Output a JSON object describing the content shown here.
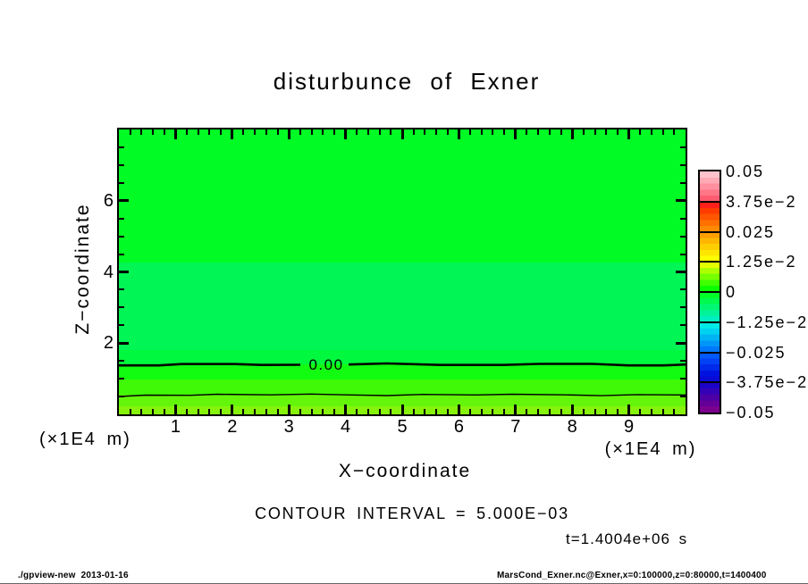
{
  "title": "disturbunce of Exner",
  "axes": {
    "x": {
      "label": "X−coordinate",
      "units": "(×1E4 m)",
      "ticks": [
        "1",
        "2",
        "3",
        "4",
        "5",
        "6",
        "7",
        "8",
        "9"
      ]
    },
    "y": {
      "label": "Z−coordinate",
      "units": "(×1E4 m)",
      "ticks": [
        "2",
        "4",
        "6"
      ]
    }
  },
  "annotations": {
    "contour_interval": "CONTOUR INTERVAL = 5.000E−03",
    "time": "t=1.4004e+06 s",
    "contour_label": "0.00"
  },
  "footer": {
    "left": "./gpview-new  2013-01-16",
    "right": "MarsCond_Exner.nc@Exner,x=0:100000,z=0:80000,t=1400400"
  },
  "colorbar": {
    "tick_labels": [
      "0.05",
      "3.75e−2",
      "0.025",
      "1.25e−2",
      "0",
      "−1.25e−2",
      "−0.025",
      "−3.75e−2",
      "−0.05"
    ],
    "segments": [
      {
        "colors": [
          "#FFC2CC",
          "#FFA9B5",
          "#FF8F9E",
          "#FF7687",
          "#FF5C70"
        ]
      },
      {
        "colors": [
          "#FF2019",
          "#FF3C00",
          "#FF5600",
          "#FF7000",
          "#FF8A00"
        ]
      },
      {
        "colors": [
          "#FF9E00",
          "#FFB600",
          "#FFCE00",
          "#FFE600",
          "#FFFD00"
        ]
      },
      {
        "colors": [
          "#E2FF00",
          "#ACFF00",
          "#76FF00",
          "#40FF00",
          "#0AFF00"
        ]
      },
      {
        "colors": [
          "#00FF28",
          "#00FB4E",
          "#00F774",
          "#00F39A",
          "#00EFC0"
        ]
      },
      {
        "colors": [
          "#00EBE6",
          "#00D2F0",
          "#00B4F4",
          "#0096F8",
          "#0078FC"
        ]
      },
      {
        "colors": [
          "#005AFE",
          "#0042F4",
          "#002AEA",
          "#0012E0",
          "#0A0AD6"
        ]
      },
      {
        "colors": [
          "#1C04C6",
          "#3402B6",
          "#4C00A6",
          "#640098",
          "#7C008E"
        ]
      }
    ]
  },
  "chart_data": {
    "type": "heatmap",
    "title": "disturbunce of Exner",
    "xlabel": "X-coordinate",
    "xunits": "(×1E4 m)",
    "ylabel": "Z-coordinate",
    "yunits": "(×1E4 m)",
    "xlim": [
      0,
      10
    ],
    "ylim": [
      0,
      8
    ],
    "x_major_ticks": [
      1,
      2,
      3,
      4,
      5,
      6,
      7,
      8,
      9
    ],
    "y_major_ticks": [
      2,
      4,
      6
    ],
    "x_minor_step": 0.2,
    "y_minor_step": 0.5,
    "grid": false,
    "legend_position": "right-colorbar",
    "contour_interval": 0.005,
    "tone_interval": 0.0025,
    "colorbar_range": [
      -0.05,
      0.05
    ],
    "time": "t=1.4004e+06 s",
    "contour_lines": [
      {
        "value": 0.0,
        "label": "0.00",
        "z": 1.4,
        "thick": true
      },
      {
        "value": 0.005,
        "label": null,
        "z": 0.54,
        "thick": false
      }
    ],
    "tone_bands": [
      {
        "z_from": 4.27,
        "z_to": 8.0,
        "value_range": [
          -0.0025,
          0.0
        ],
        "color": "#00FC24"
      },
      {
        "z_from": 1.81,
        "z_to": 4.27,
        "value_range": [
          -0.0025,
          0.0
        ],
        "color": "#00F555"
      },
      {
        "z_from": 1.4,
        "z_to": 1.81,
        "value_range": [
          -0.0025,
          0.0
        ],
        "color": "#00F93E"
      },
      {
        "z_from": 0.97,
        "z_to": 1.4,
        "value_range": [
          0.0,
          0.0025
        ],
        "color": "#12FC11"
      },
      {
        "z_from": 0.54,
        "z_to": 0.97,
        "value_range": [
          0.0025,
          0.005
        ],
        "color": "#3FF907"
      },
      {
        "z_from": 0.22,
        "z_to": 0.54,
        "value_range": [
          0.005,
          0.0075
        ],
        "color": "#63F60A"
      },
      {
        "z_from": 0.0,
        "z_to": 0.22,
        "value_range": [
          0.0075,
          0.01
        ],
        "color": "#87F30D"
      }
    ]
  }
}
